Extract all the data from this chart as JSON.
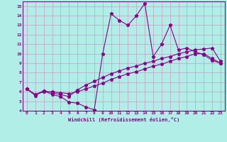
{
  "xlabel": "Windchill (Refroidissement éolien,°C)",
  "bg_color": "#b2eee8",
  "grid_color": "#c8a8c8",
  "line_color": "#880088",
  "xlim": [
    -0.5,
    23.5
  ],
  "ylim": [
    4,
    15.5
  ],
  "xticks": [
    0,
    1,
    2,
    3,
    4,
    5,
    6,
    7,
    8,
    9,
    10,
    11,
    12,
    13,
    14,
    15,
    16,
    17,
    18,
    19,
    20,
    21,
    22,
    23
  ],
  "yticks": [
    4,
    5,
    6,
    7,
    8,
    9,
    10,
    11,
    12,
    13,
    14,
    15
  ],
  "series1_x": [
    0,
    1,
    2,
    3,
    4,
    5,
    6,
    7,
    8,
    9,
    10,
    11,
    12,
    13,
    14,
    15,
    16,
    17,
    18,
    19,
    20,
    21,
    22,
    23
  ],
  "series1_y": [
    6.3,
    5.6,
    6.1,
    5.7,
    5.5,
    4.9,
    4.8,
    4.4,
    4.1,
    10.0,
    14.2,
    13.5,
    13.0,
    14.0,
    15.3,
    9.7,
    11.0,
    13.0,
    10.4,
    10.6,
    10.2,
    9.9,
    9.3,
    9.0
  ],
  "series2_x": [
    0,
    1,
    2,
    3,
    4,
    5,
    6,
    7,
    8,
    9,
    10,
    11,
    12,
    13,
    14,
    15,
    16,
    17,
    18,
    19,
    20,
    21,
    22,
    23
  ],
  "series2_y": [
    6.3,
    5.7,
    6.1,
    5.9,
    5.7,
    5.5,
    6.2,
    6.7,
    7.1,
    7.5,
    7.9,
    8.2,
    8.5,
    8.7,
    9.0,
    9.2,
    9.5,
    9.7,
    10.0,
    10.2,
    10.4,
    10.5,
    10.6,
    9.2
  ],
  "series3_x": [
    0,
    1,
    2,
    3,
    4,
    5,
    6,
    7,
    8,
    9,
    10,
    11,
    12,
    13,
    14,
    15,
    16,
    17,
    18,
    19,
    20,
    21,
    22,
    23
  ],
  "series3_y": [
    6.3,
    5.7,
    6.0,
    6.0,
    5.9,
    5.8,
    6.0,
    6.3,
    6.6,
    6.9,
    7.3,
    7.6,
    7.9,
    8.1,
    8.4,
    8.7,
    8.9,
    9.2,
    9.5,
    9.7,
    10.0,
    10.0,
    9.5,
    9.0
  ]
}
